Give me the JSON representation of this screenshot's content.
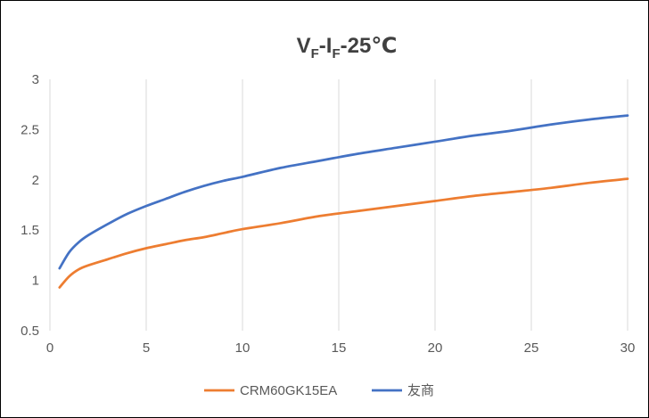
{
  "chart_data": {
    "type": "line",
    "title": {
      "parts": [
        {
          "text": "V",
          "sub": false
        },
        {
          "text": "F",
          "sub": true
        },
        {
          "text": "-I",
          "sub": false
        },
        {
          "text": "F",
          "sub": true
        },
        {
          "text": "-25℃",
          "sub": false
        }
      ]
    },
    "xlabel": "",
    "ylabel": "",
    "xlim": [
      0,
      30
    ],
    "ylim": [
      0.5,
      3
    ],
    "x_ticks": [
      0,
      5,
      10,
      15,
      20,
      25,
      30
    ],
    "y_ticks": [
      0.5,
      1,
      1.5,
      2,
      2.5,
      3
    ],
    "x_tick_labels": [
      "0",
      "5",
      "10",
      "15",
      "20",
      "25",
      "30"
    ],
    "y_tick_labels": [
      "0.5",
      "1",
      "1.5",
      "2",
      "2.5",
      "3"
    ],
    "grid": "vertical",
    "legend_position": "bottom",
    "series": [
      {
        "name": "CRM60GK15EA",
        "color": "#ED7D31",
        "x": [
          0.5,
          1,
          1.5,
          2,
          3,
          4,
          5,
          6,
          7,
          8,
          9,
          10,
          12,
          14,
          16,
          18,
          20,
          22,
          24,
          26,
          28,
          30
        ],
        "y": [
          0.93,
          1.04,
          1.11,
          1.15,
          1.21,
          1.27,
          1.32,
          1.36,
          1.4,
          1.43,
          1.47,
          1.51,
          1.57,
          1.64,
          1.69,
          1.74,
          1.79,
          1.84,
          1.88,
          1.92,
          1.97,
          2.01
        ]
      },
      {
        "name": "友商",
        "color": "#4472C4",
        "x": [
          0.5,
          1,
          1.5,
          2,
          3,
          4,
          5,
          6,
          7,
          8,
          9,
          10,
          12,
          14,
          16,
          18,
          20,
          22,
          24,
          26,
          28,
          30
        ],
        "y": [
          1.12,
          1.28,
          1.38,
          1.45,
          1.56,
          1.66,
          1.74,
          1.81,
          1.88,
          1.94,
          1.99,
          2.03,
          2.12,
          2.19,
          2.26,
          2.32,
          2.38,
          2.44,
          2.49,
          2.55,
          2.6,
          2.64
        ]
      }
    ]
  },
  "colors": {
    "grid": "#D9D9D9",
    "axis_text": "#595959",
    "title_text": "#404040"
  }
}
